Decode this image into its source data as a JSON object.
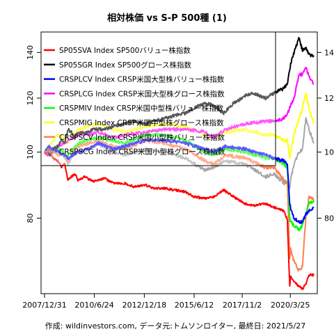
{
  "chart_data": {
    "type": "line",
    "title": "相対株価 vs S-P 500種 (1)",
    "caption": "作成: wildinvestors.com, データ元:トムソンロイター, 最終日: 2021/5/27",
    "xlabel": "",
    "ylabel": "",
    "y_scale": "log",
    "ylim": [
      62,
      150
    ],
    "y_ticks": [
      80,
      100,
      120,
      140
    ],
    "x_range": [
      "2007-12-31",
      "2021-05-27"
    ],
    "x_tick_labels": [
      "2007/12/31",
      "2010/6/24",
      "2012/12/18",
      "2015/6/12",
      "2017/11/2",
      "2020/3/25"
    ],
    "x_tick_dates": [
      "2007-12-31",
      "2010-06-24",
      "2012-12-18",
      "2015-06-12",
      "2017-11-02",
      "2020-03-25"
    ],
    "grid": false,
    "legend_position": "top-left",
    "series": [
      {
        "name": "SP05SVA Index SP500バリュー株指数",
        "color": "#ff0000",
        "x": [
          "2007-12-31",
          "2008-02-01",
          "2008-04-01",
          "2008-06-01",
          "2008-09-01",
          "2008-11-01",
          "2009-01-01",
          "2009-03-01",
          "2009-05-01",
          "2009-07-01",
          "2009-09-01",
          "2010-01-01",
          "2010-06-01",
          "2011-01-01",
          "2011-06-01",
          "2012-01-01",
          "2012-06-01",
          "2013-01-01",
          "2013-06-01",
          "2014-01-01",
          "2014-06-01",
          "2015-01-01",
          "2015-06-01",
          "2016-01-01",
          "2016-06-01",
          "2016-12-01",
          "2017-06-01",
          "2018-01-01",
          "2018-06-01",
          "2019-01-01",
          "2019-06-01",
          "2019-12-01",
          "2020-02-01",
          "2020-03-15",
          "2020-04-01",
          "2020-06-01",
          "2020-09-01",
          "2020-11-01",
          "2021-01-01",
          "2021-03-01",
          "2021-05-27"
        ],
        "values": [
          100,
          99.5,
          101,
          98,
          97,
          95,
          96,
          91,
          92,
          93,
          91,
          92,
          90.5,
          91.5,
          90,
          90,
          89,
          89.5,
          88.5,
          88.5,
          88,
          87.5,
          86,
          85.5,
          86,
          88,
          86,
          84,
          83.5,
          84,
          83,
          82,
          79.5,
          63.5,
          66,
          64.5,
          63.5,
          63,
          64,
          66,
          66
        ]
      },
      {
        "name": "SP05SGR Index SP500グロース株指数",
        "color": "#000000",
        "x": [
          "2007-12-31",
          "2008-02-01",
          "2008-04-01",
          "2008-06-01",
          "2008-09-01",
          "2008-11-01",
          "2009-01-01",
          "2009-03-01",
          "2009-05-01",
          "2009-07-01",
          "2009-09-01",
          "2010-01-01",
          "2010-06-01",
          "2011-01-01",
          "2011-06-01",
          "2012-01-01",
          "2012-06-01",
          "2013-01-01",
          "2013-06-01",
          "2014-01-01",
          "2014-06-01",
          "2015-01-01",
          "2015-06-01",
          "2016-01-01",
          "2016-06-01",
          "2016-12-01",
          "2017-06-01",
          "2018-01-01",
          "2018-06-01",
          "2019-01-01",
          "2019-06-01",
          "2019-12-01",
          "2020-02-01",
          "2020-03-15",
          "2020-04-01",
          "2020-06-01",
          "2020-09-01",
          "2020-11-01",
          "2021-01-01",
          "2021-03-01",
          "2021-05-27"
        ],
        "values": [
          100,
          100.5,
          99,
          101,
          102,
          104,
          103,
          108,
          107,
          105,
          107,
          106.5,
          108,
          108,
          109,
          110,
          111,
          110,
          111,
          112,
          113,
          114,
          116,
          118,
          117,
          114,
          118,
          121,
          122,
          120,
          122,
          124,
          126,
          132,
          135,
          140,
          147,
          141,
          142,
          139,
          138
        ]
      },
      {
        "name": "CRSPLCV Index CRSP米国大型株バリュー株指数",
        "color": "#0000ff",
        "x": [
          "2007-12-31",
          "2008-03-01",
          "2008-06-01",
          "2008-09-01",
          "2008-12-01",
          "2009-03-01",
          "2009-06-01",
          "2009-09-01",
          "2010-03-01",
          "2010-09-01",
          "2011-06-01",
          "2012-01-01",
          "2013-01-01",
          "2014-01-01",
          "2015-01-01",
          "2016-01-01",
          "2016-06-01",
          "2017-01-01",
          "2018-01-01",
          "2019-01-01",
          "2019-06-01",
          "2019-12-01",
          "2020-02-01",
          "2020-03-15",
          "2020-04-01",
          "2020-06-01",
          "2020-09-01",
          "2020-11-01",
          "2021-01-01",
          "2021-03-01",
          "2021-05-27"
        ],
        "values": [
          100,
          102,
          101,
          100,
          99,
          98,
          99,
          100,
          101,
          103,
          101,
          102,
          104,
          104,
          103,
          101,
          100,
          102,
          101,
          99,
          98,
          97,
          96,
          84,
          83,
          80,
          79,
          79,
          81,
          82,
          83
        ]
      },
      {
        "name": "CRSPLCG Index CRSP米国大型株グロース株指数",
        "color": "#ff00ff",
        "x": [
          "2007-12-31",
          "2008-03-01",
          "2008-06-01",
          "2008-09-01",
          "2008-12-01",
          "2009-03-01",
          "2009-06-01",
          "2009-09-01",
          "2010-03-01",
          "2010-09-01",
          "2011-06-01",
          "2012-01-01",
          "2013-01-01",
          "2014-01-01",
          "2015-01-01",
          "2016-01-01",
          "2016-06-01",
          "2017-01-01",
          "2018-01-01",
          "2019-01-01",
          "2019-06-01",
          "2019-12-01",
          "2020-02-01",
          "2020-03-15",
          "2020-04-01",
          "2020-06-01",
          "2020-09-01",
          "2020-11-01",
          "2021-01-01",
          "2021-03-01",
          "2021-05-27"
        ],
        "values": [
          100,
          99,
          101,
          102,
          103,
          104,
          105,
          106,
          106,
          107,
          105,
          106,
          107,
          108,
          108,
          107,
          105,
          108,
          110,
          111,
          111,
          112,
          114,
          116,
          117,
          120,
          130,
          130,
          133,
          129,
          126
        ]
      },
      {
        "name": "CRSPMIV Index CRSP米国中型株バリュー株指数",
        "color": "#00ff00",
        "x": [
          "2007-12-31",
          "2008-03-01",
          "2008-06-01",
          "2008-09-01",
          "2008-12-01",
          "2009-03-01",
          "2009-06-01",
          "2009-09-01",
          "2010-03-01",
          "2010-09-01",
          "2011-06-01",
          "2012-01-01",
          "2013-01-01",
          "2014-01-01",
          "2015-01-01",
          "2016-01-01",
          "2016-06-01",
          "2017-01-01",
          "2018-01-01",
          "2019-01-01",
          "2019-06-01",
          "2019-12-01",
          "2020-02-01",
          "2020-03-15",
          "2020-04-01",
          "2020-06-01",
          "2020-09-01",
          "2020-11-01",
          "2021-01-01",
          "2021-03-01",
          "2021-05-27"
        ],
        "values": [
          100,
          100.5,
          101,
          101,
          100,
          99,
          101,
          103,
          104,
          105,
          104,
          103,
          106,
          106,
          104,
          100,
          99,
          101,
          100,
          98,
          98,
          96,
          95,
          80,
          79,
          78,
          77,
          78,
          81,
          84,
          85
        ]
      },
      {
        "name": "CRSPMIG Index CRSP米国中型株グロース株指数",
        "color": "#ffff00",
        "x": [
          "2007-12-31",
          "2008-03-01",
          "2008-06-01",
          "2008-09-01",
          "2008-12-01",
          "2009-03-01",
          "2009-06-01",
          "2009-09-01",
          "2010-03-01",
          "2010-09-01",
          "2011-06-01",
          "2012-01-01",
          "2013-01-01",
          "2014-01-01",
          "2015-01-01",
          "2016-01-01",
          "2016-06-01",
          "2017-01-01",
          "2018-01-01",
          "2019-01-01",
          "2019-06-01",
          "2019-12-01",
          "2020-02-01",
          "2020-03-15",
          "2020-04-01",
          "2020-06-01",
          "2020-09-01",
          "2020-11-01",
          "2021-01-01",
          "2021-03-01",
          "2021-05-27"
        ],
        "values": [
          100,
          101,
          104,
          106,
          105,
          103,
          106,
          108,
          109,
          110,
          108,
          107,
          109,
          110,
          109,
          106,
          105,
          107,
          108,
          106,
          106,
          104,
          104,
          98,
          100,
          106,
          112,
          116,
          122,
          116,
          110
        ]
      },
      {
        "name": "CRSPSCV Index CRSP米国小型株バリュー株指数",
        "color": "#ff7f50",
        "x": [
          "2007-12-31",
          "2008-03-01",
          "2008-06-01",
          "2008-09-01",
          "2008-12-01",
          "2009-03-01",
          "2009-06-01",
          "2009-09-01",
          "2010-03-01",
          "2010-09-01",
          "2011-06-01",
          "2012-01-01",
          "2013-01-01",
          "2014-01-01",
          "2015-01-01",
          "2016-01-01",
          "2016-06-01",
          "2017-01-01",
          "2018-01-01",
          "2019-01-01",
          "2019-06-01",
          "2019-12-01",
          "2020-02-01",
          "2020-03-15",
          "2020-04-01",
          "2020-06-01",
          "2020-09-01",
          "2020-11-01",
          "2021-01-01",
          "2021-03-01",
          "2021-05-27"
        ],
        "values": [
          100,
          101,
          100,
          99,
          100,
          97,
          100,
          102,
          103,
          104,
          102,
          101,
          104,
          103,
          101,
          97,
          96,
          99,
          98,
          95,
          95,
          91,
          90,
          70,
          72,
          69,
          67,
          68,
          80,
          86,
          85
        ]
      },
      {
        "name": "CRSPSCG Index CRSP米国小型株グロース株指数",
        "color": "#a6a6a6",
        "x": [
          "2007-12-31",
          "2008-03-01",
          "2008-06-01",
          "2008-09-01",
          "2008-12-01",
          "2009-03-01",
          "2009-06-01",
          "2009-09-01",
          "2010-03-01",
          "2010-09-01",
          "2011-06-01",
          "2012-01-01",
          "2013-01-01",
          "2014-01-01",
          "2015-01-01",
          "2016-01-01",
          "2016-06-01",
          "2017-01-01",
          "2018-01-01",
          "2019-01-01",
          "2019-06-01",
          "2019-12-01",
          "2020-02-01",
          "2020-03-15",
          "2020-04-01",
          "2020-06-01",
          "2020-09-01",
          "2020-11-01",
          "2021-01-01",
          "2021-03-01",
          "2021-05-27"
        ],
        "values": [
          100,
          100,
          101,
          100,
          99,
          96,
          99,
          100,
          101,
          103,
          100,
          99,
          101,
          100,
          98,
          94,
          95,
          97,
          96,
          92,
          93,
          90,
          90,
          88,
          91,
          96,
          100,
          101,
          112,
          108,
          103
        ]
      }
    ]
  }
}
